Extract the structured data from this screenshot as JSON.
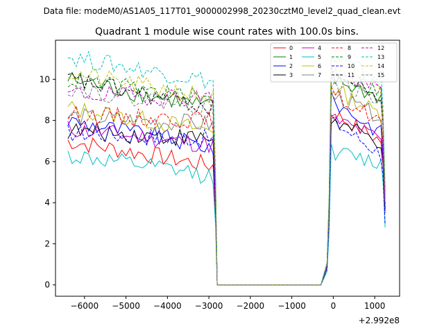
{
  "chart_data": {
    "type": "line",
    "suptitle": "Data file: modeM0/AS1A05_117T01_9000002998_20230cztM0_level2_quad_clean.evt",
    "title": "Quadrant 1 module wise count rates with 100.0s bins.",
    "xlabel": "",
    "ylabel": "",
    "x_offset_label": "+2.992e8",
    "xlim": [
      -6700,
      1600
    ],
    "ylim": [
      -0.55,
      11.9
    ],
    "xticks": [
      -6000,
      -5000,
      -4000,
      -3000,
      -2000,
      -1000,
      0,
      1000
    ],
    "xtick_labels": [
      "−6000",
      "−5000",
      "−4000",
      "−3000",
      "−2000",
      "−1000",
      "0",
      "1000"
    ],
    "yticks": [
      0,
      2,
      4,
      6,
      8,
      10
    ],
    "ytick_labels": [
      "0",
      "2",
      "4",
      "6",
      "8",
      "10"
    ],
    "segment_a": [
      -6400,
      -2900
    ],
    "gap": [
      -2800,
      -250
    ],
    "segment_b": [
      -50,
      1150
    ],
    "bin_width": 100,
    "legend_position": "top-right",
    "legend_columns": 4,
    "series": [
      {
        "name": "0",
        "color": "#ff0000",
        "dash": "solid",
        "base_a": 7.0,
        "slope_a": -1.2,
        "base_b": 8.4,
        "slope_b": -1.4,
        "end": 3.5
      },
      {
        "name": "1",
        "color": "#008000",
        "dash": "solid",
        "base_a": 10.0,
        "slope_a": -1.4,
        "base_b": 10.0,
        "slope_b": -0.9,
        "end": 4.5
      },
      {
        "name": "2",
        "color": "#0000ff",
        "dash": "solid",
        "base_a": 8.0,
        "slope_a": -1.3,
        "base_b": 9.0,
        "slope_b": -1.6,
        "end": 4.0
      },
      {
        "name": "3",
        "color": "#000000",
        "dash": "solid",
        "base_a": 7.5,
        "slope_a": -0.4,
        "base_b": 8.0,
        "slope_b": -1.1,
        "end": 3.6
      },
      {
        "name": "4",
        "color": "#bf00bf",
        "dash": "solid",
        "base_a": 7.6,
        "slope_a": -0.8,
        "base_b": 8.1,
        "slope_b": -1.0,
        "end": 3.5
      },
      {
        "name": "5",
        "color": "#00bfbf",
        "dash": "solid",
        "base_a": 6.3,
        "slope_a": -1.0,
        "base_b": 6.5,
        "slope_b": -0.6,
        "end": 2.8
      },
      {
        "name": "6",
        "color": "#bfbf00",
        "dash": "solid",
        "base_a": 8.6,
        "slope_a": -1.1,
        "base_b": 9.6,
        "slope_b": -1.3,
        "end": 4.5
      },
      {
        "name": "7",
        "color": "#808080",
        "dash": "solid",
        "base_a": 8.2,
        "slope_a": -0.4,
        "base_b": 9.2,
        "slope_b": -1.0,
        "end": 4.3
      },
      {
        "name": "8",
        "color": "#ff0000",
        "dash": "dashed",
        "base_a": 8.3,
        "slope_a": -0.3,
        "base_b": 9.3,
        "slope_b": -1.3,
        "end": 4.2
      },
      {
        "name": "9",
        "color": "#008000",
        "dash": "dashed",
        "base_a": 10.0,
        "slope_a": -1.0,
        "base_b": 10.4,
        "slope_b": -1.0,
        "end": 4.4
      },
      {
        "name": "10",
        "color": "#0000ff",
        "dash": "dashed",
        "base_a": 7.4,
        "slope_a": -0.3,
        "base_b": 8.0,
        "slope_b": -1.6,
        "end": 3.0
      },
      {
        "name": "11",
        "color": "#000000",
        "dash": "dashed",
        "base_a": 10.0,
        "slope_a": -1.4,
        "base_b": 10.3,
        "slope_b": -1.2,
        "end": 3.7
      },
      {
        "name": "12",
        "color": "#bf00bf",
        "dash": "dashed",
        "base_a": 9.3,
        "slope_a": -0.2,
        "base_b": 10.3,
        "slope_b": -0.8,
        "end": 4.0
      },
      {
        "name": "13",
        "color": "#00bfbf",
        "dash": "dashed",
        "base_a": 11.1,
        "slope_a": -1.2,
        "base_b": 11.0,
        "slope_b": -0.9,
        "end": 4.8
      },
      {
        "name": "14",
        "color": "#bfbf00",
        "dash": "dashed",
        "base_a": 10.3,
        "slope_a": -1.2,
        "base_b": 10.8,
        "slope_b": -1.2,
        "end": 4.2
      },
      {
        "name": "15",
        "color": "#808080",
        "dash": "dashed",
        "base_a": 9.6,
        "slope_a": -1.0,
        "base_b": 9.8,
        "slope_b": -0.8,
        "end": 4.0
      }
    ]
  }
}
